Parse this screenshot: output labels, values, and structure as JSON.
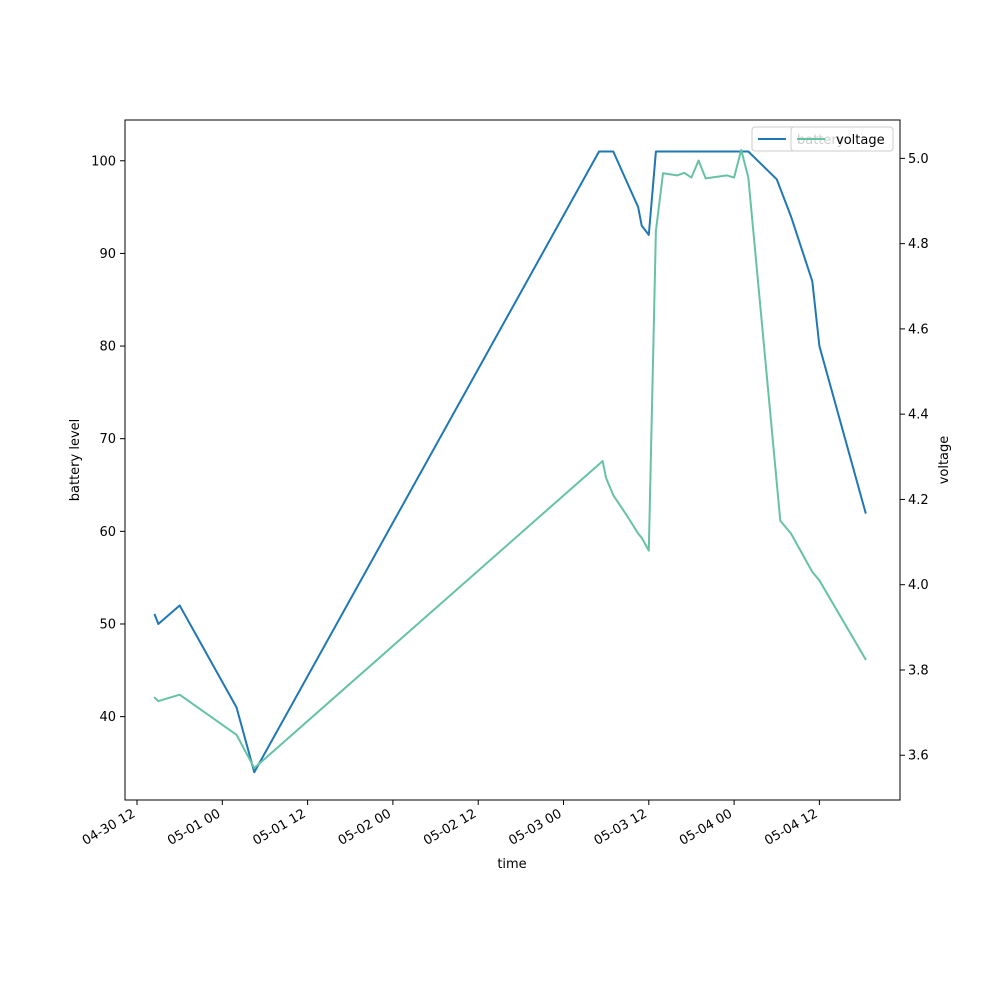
{
  "chart_data": {
    "type": "line",
    "xlabel": "time",
    "ylabel_left": "battery level",
    "ylabel_right": "voltage",
    "x_ticks": [
      "04-30 12",
      "05-01 00",
      "05-01 12",
      "05-02 00",
      "05-02 12",
      "05-03 00",
      "05-03 12",
      "05-04 00",
      "05-04 12"
    ],
    "y_left_ticks": [
      "40",
      "50",
      "60",
      "70",
      "80",
      "90",
      "100"
    ],
    "y_right_ticks": [
      "3.6",
      "3.8",
      "4.0",
      "4.2",
      "4.4",
      "4.6",
      "4.8",
      "5.0"
    ],
    "y_left_lim": [
      31,
      104.4
    ],
    "y_right_lim": [
      3.495,
      5.09
    ],
    "legend_location": "upper right",
    "legend_entries": [
      "battery",
      "voltage"
    ],
    "series": [
      {
        "name": "battery",
        "axis": "left",
        "color": "#1f77b4",
        "points": [
          [
            "2020-04-30T14:30",
            51
          ],
          [
            "2020-04-30T15:00",
            50
          ],
          [
            "2020-04-30T18:00",
            52
          ],
          [
            "2020-05-01T02:00",
            41
          ],
          [
            "2020-05-01T04:30",
            34
          ],
          [
            "2020-05-03T05:00",
            101
          ],
          [
            "2020-05-03T07:00",
            101
          ],
          [
            "2020-05-03T10:30",
            95
          ],
          [
            "2020-05-03T11:00",
            93
          ],
          [
            "2020-05-03T12:00",
            92
          ],
          [
            "2020-05-03T13:00",
            101
          ],
          [
            "2020-05-04T02:00",
            101
          ],
          [
            "2020-05-04T06:00",
            98
          ],
          [
            "2020-05-04T06:30",
            97
          ],
          [
            "2020-05-04T08:00",
            94
          ],
          [
            "2020-05-04T11:00",
            87
          ],
          [
            "2020-05-04T12:00",
            80
          ],
          [
            "2020-05-04T18:30",
            62
          ]
        ]
      },
      {
        "name": "voltage",
        "axis": "right",
        "color": "#66c2a5",
        "points": [
          [
            "2020-04-30T14:30",
            3.735
          ],
          [
            "2020-04-30T15:00",
            3.727
          ],
          [
            "2020-04-30T18:00",
            3.742
          ],
          [
            "2020-05-01T02:00",
            3.648
          ],
          [
            "2020-05-01T04:30",
            3.57
          ],
          [
            "2020-05-03T05:30",
            4.29
          ],
          [
            "2020-05-03T06:00",
            4.25
          ],
          [
            "2020-05-03T07:00",
            4.21
          ],
          [
            "2020-05-03T09:00",
            4.16
          ],
          [
            "2020-05-03T10:30",
            4.12
          ],
          [
            "2020-05-03T11:00",
            4.11
          ],
          [
            "2020-05-03T12:00",
            4.08
          ],
          [
            "2020-05-03T13:00",
            4.83
          ],
          [
            "2020-05-03T14:00",
            4.965
          ],
          [
            "2020-05-03T16:00",
            4.96
          ],
          [
            "2020-05-03T17:00",
            4.966
          ],
          [
            "2020-05-03T18:00",
            4.955
          ],
          [
            "2020-05-03T19:00",
            4.995
          ],
          [
            "2020-05-03T20:00",
            4.953
          ],
          [
            "2020-05-03T23:00",
            4.96
          ],
          [
            "2020-05-04T00:00",
            4.955
          ],
          [
            "2020-05-04T01:00",
            5.02
          ],
          [
            "2020-05-04T02:00",
            4.955
          ],
          [
            "2020-05-04T06:30",
            4.15
          ],
          [
            "2020-05-04T08:00",
            4.12
          ],
          [
            "2020-05-04T11:00",
            4.03
          ],
          [
            "2020-05-04T12:00",
            4.01
          ],
          [
            "2020-05-04T18:30",
            3.825
          ]
        ]
      }
    ]
  }
}
